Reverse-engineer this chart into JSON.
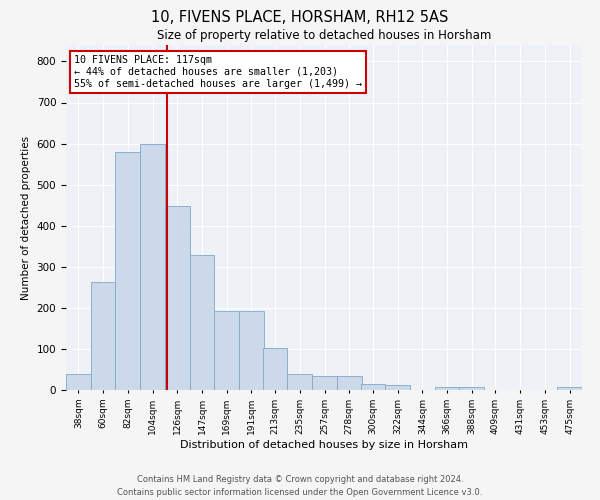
{
  "title": "10, FIVENS PLACE, HORSHAM, RH12 5AS",
  "subtitle": "Size of property relative to detached houses in Horsham",
  "xlabel": "Distribution of detached houses by size in Horsham",
  "ylabel": "Number of detached properties",
  "bar_color": "#ccd9e8",
  "bar_edge_color": "#7fa8cc",
  "background_color": "#eef2f7",
  "grid_color": "#ffffff",
  "property_line_value": 117,
  "annotation_title": "10 FIVENS PLACE: 117sqm",
  "annotation_line1": "← 44% of detached houses are smaller (1,203)",
  "annotation_line2": "55% of semi-detached houses are larger (1,499) →",
  "annotation_box_color": "#ffffff",
  "annotation_box_edge": "#cc0000",
  "property_line_color": "#cc0000",
  "categories": [
    "38sqm",
    "60sqm",
    "82sqm",
    "104sqm",
    "126sqm",
    "147sqm",
    "169sqm",
    "191sqm",
    "213sqm",
    "235sqm",
    "257sqm",
    "278sqm",
    "300sqm",
    "322sqm",
    "344sqm",
    "366sqm",
    "388sqm",
    "409sqm",
    "431sqm",
    "453sqm",
    "475sqm"
  ],
  "values": [
    38,
    262,
    580,
    600,
    448,
    328,
    193,
    193,
    103,
    38,
    33,
    33,
    15,
    12,
    0,
    8,
    8,
    0,
    0,
    0,
    8
  ],
  "bin_width": 22,
  "bin_starts": [
    27,
    49,
    71,
    93,
    115,
    137,
    159,
    181,
    202,
    224,
    246,
    268,
    289,
    311,
    333,
    355,
    377,
    398,
    420,
    442,
    464
  ],
  "xlim_left": 27,
  "xlim_right": 486,
  "ylim": [
    0,
    840
  ],
  "yticks": [
    0,
    100,
    200,
    300,
    400,
    500,
    600,
    700,
    800
  ],
  "footer1": "Contains HM Land Registry data © Crown copyright and database right 2024.",
  "footer2": "Contains public sector information licensed under the Open Government Licence v3.0."
}
